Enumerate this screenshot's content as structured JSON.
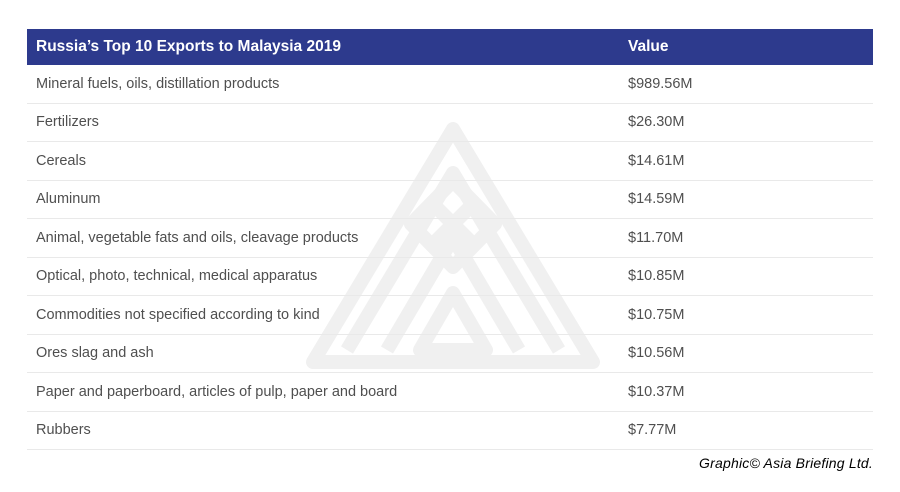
{
  "table": {
    "title": "Russia’s Top 10 Exports to Malaysia 2019",
    "value_header": "Value",
    "rows": [
      {
        "label": "Mineral fuels, oils, distillation products",
        "value": "$989.56M"
      },
      {
        "label": "Fertilizers",
        "value": "$26.30M"
      },
      {
        "label": "Cereals",
        "value": "$14.61M"
      },
      {
        "label": "Aluminum",
        "value": "$14.59M"
      },
      {
        "label": "Animal, vegetable fats and oils, cleavage products",
        "value": "$11.70M"
      },
      {
        "label": "Optical, photo, technical, medical apparatus",
        "value": "$10.85M"
      },
      {
        "label": "Commodities not specified according to kind",
        "value": "$10.75M"
      },
      {
        "label": "Ores slag and ash",
        "value": "$10.56M"
      },
      {
        "label": "Paper and paperboard, articles of pulp, paper and board",
        "value": "$10.37M"
      },
      {
        "label": "Rubbers",
        "value": "$7.77M"
      }
    ]
  },
  "footer": {
    "credit": "Graphic© Asia Briefing Ltd."
  },
  "icons": {
    "watermark": "asia-briefing-triangle-logo"
  },
  "colors": {
    "header_bg": "#2d3a8d",
    "header_text": "#ffffff",
    "row_text": "#4f4f4f",
    "divider": "#e9e9e9",
    "watermark": "#f0f0f0",
    "footer_text": "#000000"
  },
  "chart_data": {
    "type": "table",
    "title": "Russia’s Top 10 Exports to Malaysia 2019",
    "columns": [
      "Russia’s Top 10 Exports to Malaysia 2019",
      "Value"
    ],
    "categories": [
      "Mineral fuels, oils, distillation products",
      "Fertilizers",
      "Cereals",
      "Aluminum",
      "Animal, vegetable fats and oils, cleavage products",
      "Optical, photo, technical, medical apparatus",
      "Commodities not specified according to kind",
      "Ores slag and ash",
      "Paper and paperboard, articles of pulp, paper and board",
      "Rubbers"
    ],
    "values": [
      989.56,
      26.3,
      14.61,
      14.59,
      11.7,
      10.85,
      10.75,
      10.56,
      10.37,
      7.77
    ],
    "value_unit": "USD millions",
    "value_labels": [
      "$989.56M",
      "$26.30M",
      "$14.61M",
      "$14.59M",
      "$11.70M",
      "$10.85M",
      "$10.75M",
      "$10.56M",
      "$10.37M",
      "$7.77M"
    ],
    "annotations": [
      "Graphic© Asia Briefing Ltd."
    ]
  }
}
